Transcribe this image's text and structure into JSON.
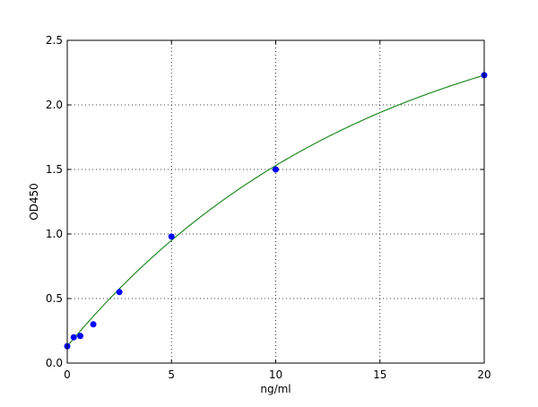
{
  "chart_data": {
    "type": "scatter",
    "title": "",
    "xlabel": "ng/ml",
    "ylabel": "OD450",
    "xlim": [
      0,
      20
    ],
    "ylim": [
      0,
      2.5
    ],
    "xticks": [
      "0",
      "5",
      "10",
      "15",
      "20"
    ],
    "yticks": [
      "0.0",
      "0.5",
      "1.0",
      "1.5",
      "2.0",
      "2.5"
    ],
    "grid": true,
    "points": {
      "x": [
        0,
        0.3125,
        0.625,
        1.25,
        2.5,
        5,
        10,
        20
      ],
      "y": [
        0.13,
        0.2,
        0.21,
        0.3,
        0.55,
        0.98,
        1.5,
        2.23
      ],
      "color": "#0000ff"
    },
    "fit_curve": {
      "color": "#228b22"
    }
  }
}
